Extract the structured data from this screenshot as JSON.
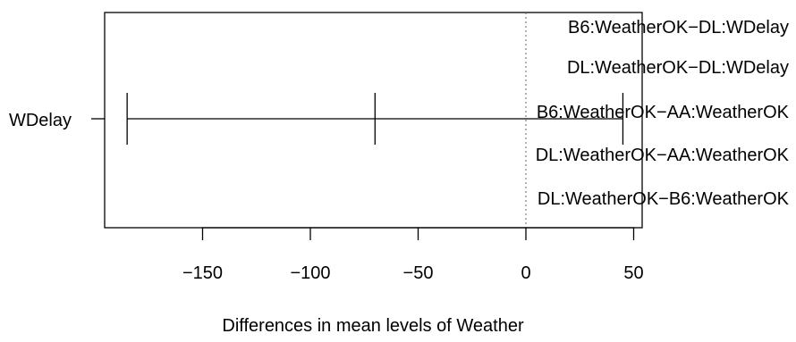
{
  "chart_data": {
    "type": "interval",
    "title": "",
    "xlabel": "Differences in mean levels of Weather",
    "ylabel": "",
    "xlim": [
      -196,
      54
    ],
    "x_ticks": [
      {
        "value": -150,
        "label": "−150"
      },
      {
        "value": -100,
        "label": "−100"
      },
      {
        "value": -50,
        "label": "−50"
      },
      {
        "value": 0,
        "label": "0"
      },
      {
        "value": 50,
        "label": "50"
      }
    ],
    "reference_line": 0,
    "row_labels": [
      "B6:WeatherOK−DL:WDelay",
      "DL:WeatherOK−DL:WDelay",
      "B6:WeatherOK−AA:WeatherOK",
      "DL:WeatherOK−AA:WeatherOK",
      "DL:WeatherOK−B6:WeatherOK"
    ],
    "left_label_fragment": "WDelay",
    "intervals": [
      {
        "row": "WDelay",
        "lower": -185,
        "estimate": -70,
        "upper": 45
      }
    ],
    "grid": false,
    "legend": "none"
  }
}
